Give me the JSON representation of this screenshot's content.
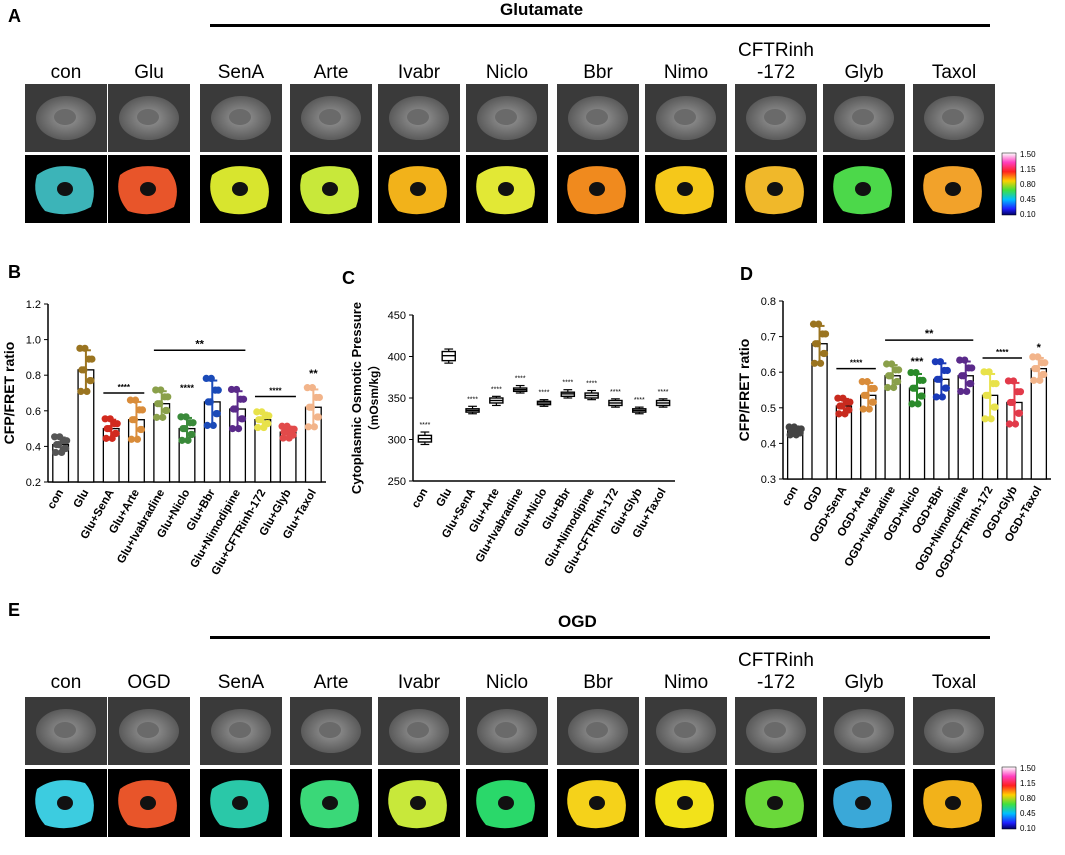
{
  "panels": {
    "A": {
      "letter": "A",
      "title": "Glutamate",
      "labels": [
        "con",
        "Glu",
        "SenA",
        "Arte",
        "Ivabr",
        "Niclo",
        "Bbr",
        "Nimo",
        "CFTRinh\n-172",
        "Glyb",
        "Taxol"
      ],
      "ratio_colors": [
        "#3cb4b8",
        "#e8552a",
        "#d8e52e",
        "#c8e83a",
        "#f2b21a",
        "#e2e835",
        "#f08a1e",
        "#f5c81a",
        "#f0b82a",
        "#4cd84a",
        "#f2a22a"
      ],
      "colorbar": {
        "ticks": [
          "1.50",
          "1.15",
          "0.80",
          "0.45",
          "0.10"
        ]
      }
    },
    "E": {
      "letter": "E",
      "title": "OGD",
      "labels": [
        "con",
        "OGD",
        "SenA",
        "Arte",
        "Ivabr",
        "Niclo",
        "Bbr",
        "Nimo",
        "CFTRinh\n-172",
        "Glyb",
        "Toxal"
      ],
      "ratio_colors": [
        "#3ccce0",
        "#e8552a",
        "#2ac8a8",
        "#3ad878",
        "#c8e83a",
        "#2ad86a",
        "#f5d21a",
        "#f2e21a",
        "#6ad83a",
        "#3aa8d8",
        "#f2b21a"
      ],
      "colorbar": {
        "ticks": [
          "1.50",
          "1.15",
          "0.80",
          "0.45",
          "0.10"
        ]
      }
    }
  },
  "chart_data": [
    {
      "id": "B",
      "letter": "B",
      "type": "bar",
      "ylabel": "CFP/FRET ratio",
      "ylim": [
        0.2,
        1.2
      ],
      "yticks": [
        "0.2",
        "0.4",
        "0.6",
        "0.8",
        "1.0",
        "1.2"
      ],
      "categories": [
        "con",
        "Glu",
        "Glu+SenA",
        "Glu+Arte",
        "Glu+Ivabradine",
        "Glu+Niclo",
        "Glu+Bbr",
        "Glu+Nimodipine",
        "Glu+CFTRinh-172",
        "Glu+Glyb",
        "Glu+Taxol"
      ],
      "values": [
        0.41,
        0.83,
        0.5,
        0.55,
        0.64,
        0.5,
        0.65,
        0.61,
        0.55,
        0.48,
        0.62
      ],
      "errors": [
        0.04,
        0.11,
        0.05,
        0.1,
        0.07,
        0.06,
        0.12,
        0.1,
        0.04,
        0.03,
        0.1
      ],
      "colors": [
        "#555555",
        "#9a7420",
        "#d22a1e",
        "#d98c3a",
        "#8aa04a",
        "#3a8a3a",
        "#1a4ab8",
        "#5a2a8a",
        "#e8e24a",
        "#e24a4a",
        "#f2b48a"
      ],
      "annotations": [
        {
          "text": "****",
          "x_from": 2,
          "x_to": 3,
          "y": 0.7
        },
        {
          "text": "**",
          "x_from": 4,
          "x_to": 7,
          "y": 0.94
        },
        {
          "text": "****",
          "x": 5,
          "y": 0.71
        },
        {
          "text": "****",
          "x_from": 8,
          "x_to": 9,
          "y": 0.68
        },
        {
          "text": "**",
          "x": 10,
          "y": 0.79
        }
      ]
    },
    {
      "id": "C",
      "letter": "C",
      "type": "box",
      "ylabel": "Cytoplasmic Osmotic Pressure",
      "ylabel2": "（mOsm/kg）",
      "ylim": [
        250,
        450
      ],
      "yticks": [
        "250",
        "300",
        "350",
        "400",
        "450"
      ],
      "categories": [
        "con",
        "Glu",
        "Glu+SenA",
        "Glu+Arte",
        "Glu+Ivabradine",
        "Glu+Niclo",
        "Glu+Bbr",
        "Glu+Nimodipine",
        "Glu+CFTRinh-172",
        "Glu+Glyb",
        "Glu+Taxol"
      ],
      "boxes": [
        {
          "min": 294,
          "q1": 297,
          "med": 301,
          "q3": 305,
          "max": 309
        },
        {
          "min": 392,
          "q1": 395,
          "med": 401,
          "q3": 406,
          "max": 409
        },
        {
          "min": 331,
          "q1": 333,
          "med": 335,
          "q3": 337,
          "max": 340
        },
        {
          "min": 341,
          "q1": 344,
          "med": 347,
          "q3": 350,
          "max": 352
        },
        {
          "min": 356,
          "q1": 358,
          "med": 360,
          "q3": 362,
          "max": 365
        },
        {
          "min": 340,
          "q1": 342,
          "med": 344,
          "q3": 346,
          "max": 348
        },
        {
          "min": 350,
          "q1": 352,
          "med": 355,
          "q3": 357,
          "max": 360
        },
        {
          "min": 348,
          "q1": 350,
          "med": 353,
          "q3": 356,
          "max": 359
        },
        {
          "min": 339,
          "q1": 341,
          "med": 344,
          "q3": 347,
          "max": 349
        },
        {
          "min": 331,
          "q1": 333,
          "med": 335,
          "q3": 337,
          "max": 339
        },
        {
          "min": 339,
          "q1": 341,
          "med": 344,
          "q3": 347,
          "max": 349
        }
      ],
      "stars": [
        "****",
        "",
        "****",
        "****",
        "****",
        "****",
        "****",
        "****",
        "****",
        "****",
        "****"
      ]
    },
    {
      "id": "D",
      "letter": "D",
      "type": "bar",
      "ylabel": "CFP/FRET ratio",
      "ylim": [
        0.3,
        0.8
      ],
      "yticks": [
        "0.3",
        "0.4",
        "0.5",
        "0.6",
        "0.7",
        "0.8"
      ],
      "categories": [
        "con",
        "OGD",
        "OGD+SenA",
        "OGD+Arte",
        "OGD+Ivabradine",
        "OGD+Niclo",
        "OGD+Bbr",
        "OGD+Nimodipine",
        "OGD+CFTRinh-172",
        "OGD+Glyb",
        "OGD+Taxol"
      ],
      "values": [
        0.435,
        0.68,
        0.505,
        0.535,
        0.59,
        0.555,
        0.58,
        0.59,
        0.535,
        0.515,
        0.61
      ],
      "errors": [
        0.01,
        0.05,
        0.02,
        0.035,
        0.03,
        0.04,
        0.045,
        0.04,
        0.06,
        0.055,
        0.03
      ],
      "colors": [
        "#444444",
        "#9a7420",
        "#c82a1e",
        "#d98c3a",
        "#8aa04a",
        "#2a8a2a",
        "#1a3ab8",
        "#5a2a8a",
        "#e8e24a",
        "#e23a4a",
        "#f2b48a"
      ],
      "annotations": [
        {
          "text": "****",
          "x_from": 2,
          "x_to": 3,
          "y": 0.61
        },
        {
          "text": "**",
          "x_from": 4,
          "x_to": 7,
          "y": 0.69
        },
        {
          "text": "***",
          "x": 5,
          "y": 0.62
        },
        {
          "text": "****",
          "x_from": 8,
          "x_to": 9,
          "y": 0.64
        },
        {
          "text": "*",
          "x": 10,
          "y": 0.66
        }
      ]
    }
  ]
}
